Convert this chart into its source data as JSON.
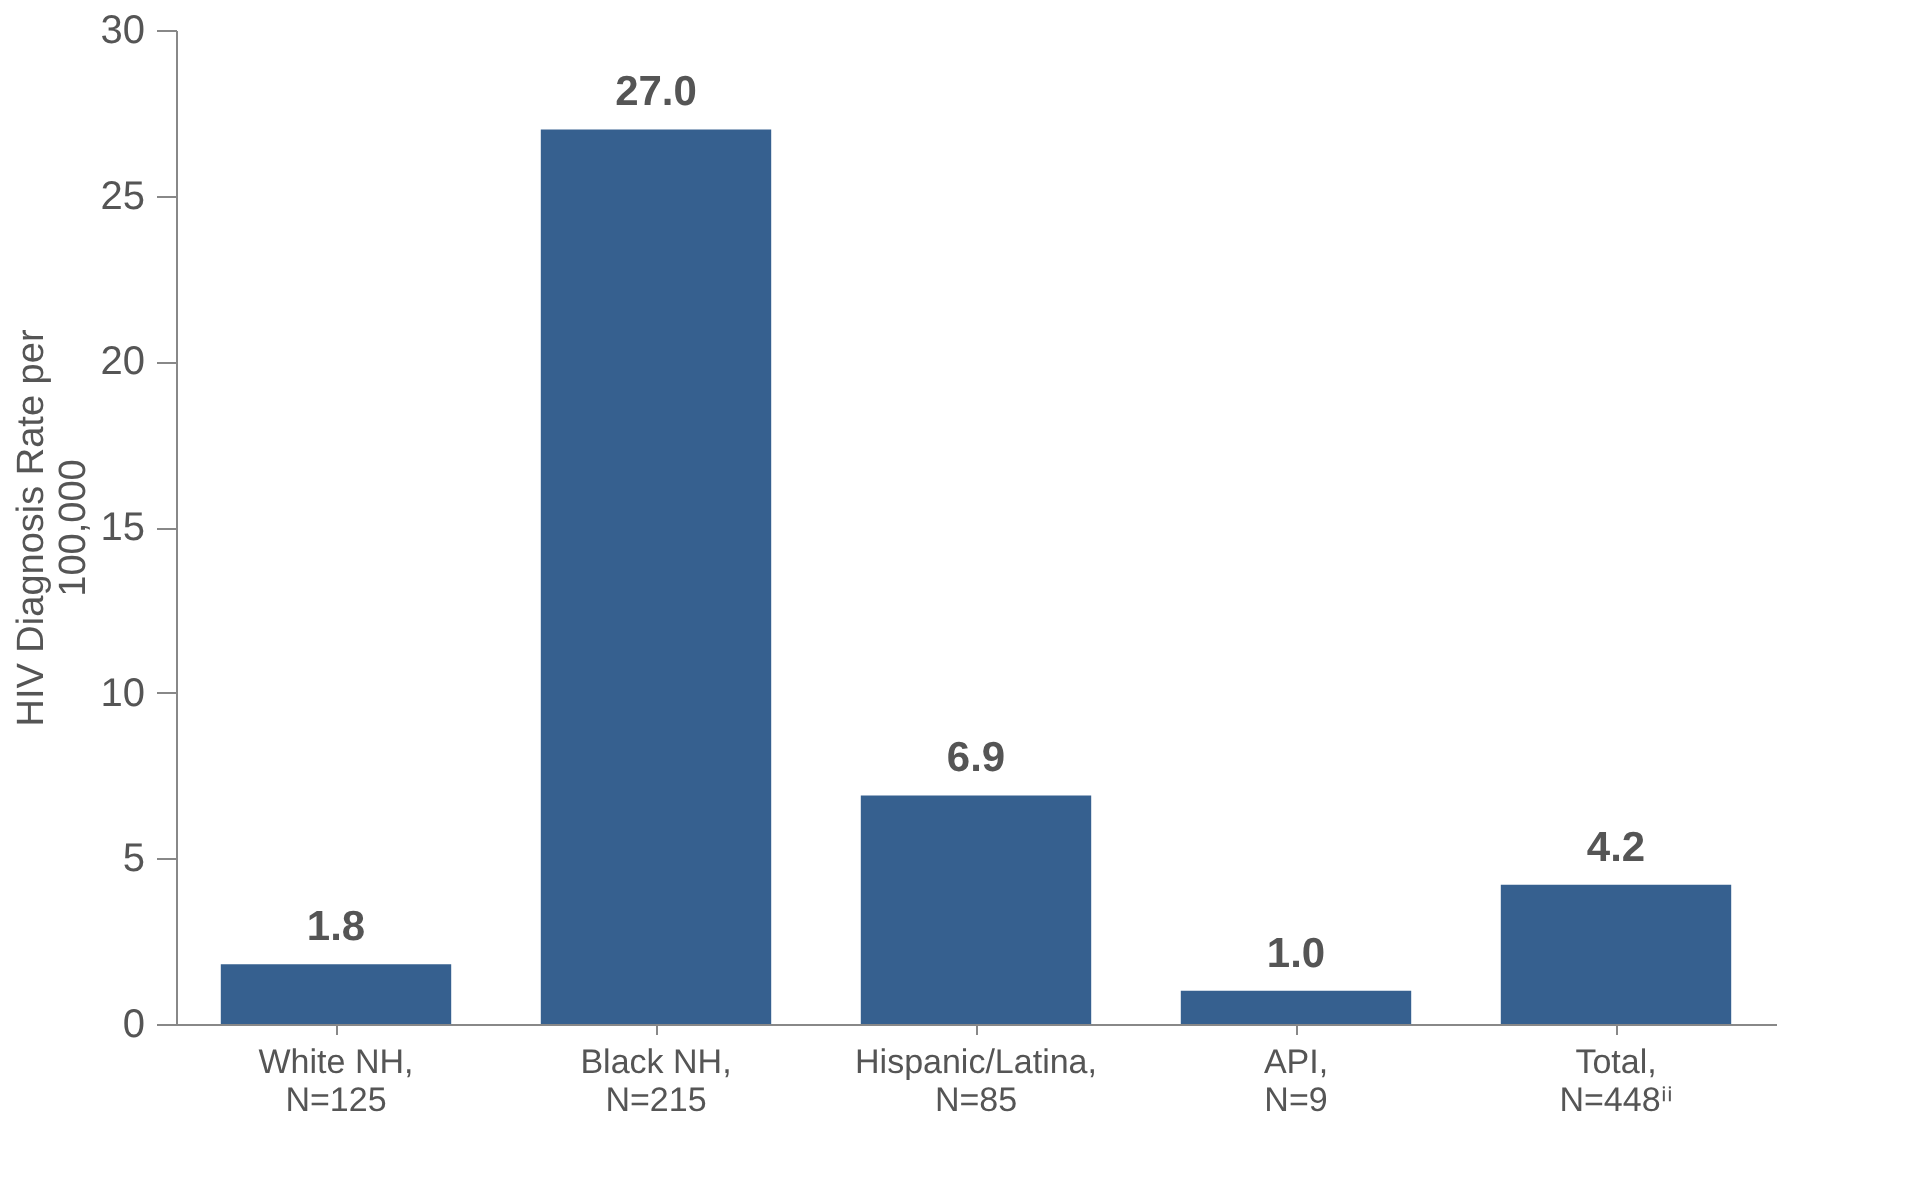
{
  "chart_data": {
    "type": "bar",
    "ylabel": "HIV Diagnosis Rate per 100,000",
    "categories": [
      "White NH,\nN=125",
      "Black NH,\nN=215",
      "Hispanic/Latina,\nN=85",
      "API,\nN=9",
      "Total,\nN=448ⁱⁱ"
    ],
    "values": [
      1.8,
      27.0,
      6.9,
      1.0,
      4.2
    ],
    "color": "#36608f",
    "ylim": [
      0,
      30
    ],
    "yticks": [
      0,
      5,
      10,
      15,
      20,
      25,
      30
    ],
    "grid": false,
    "value_labels": [
      "1.8",
      "27.0",
      "6.9",
      "1.0",
      "4.2"
    ]
  }
}
